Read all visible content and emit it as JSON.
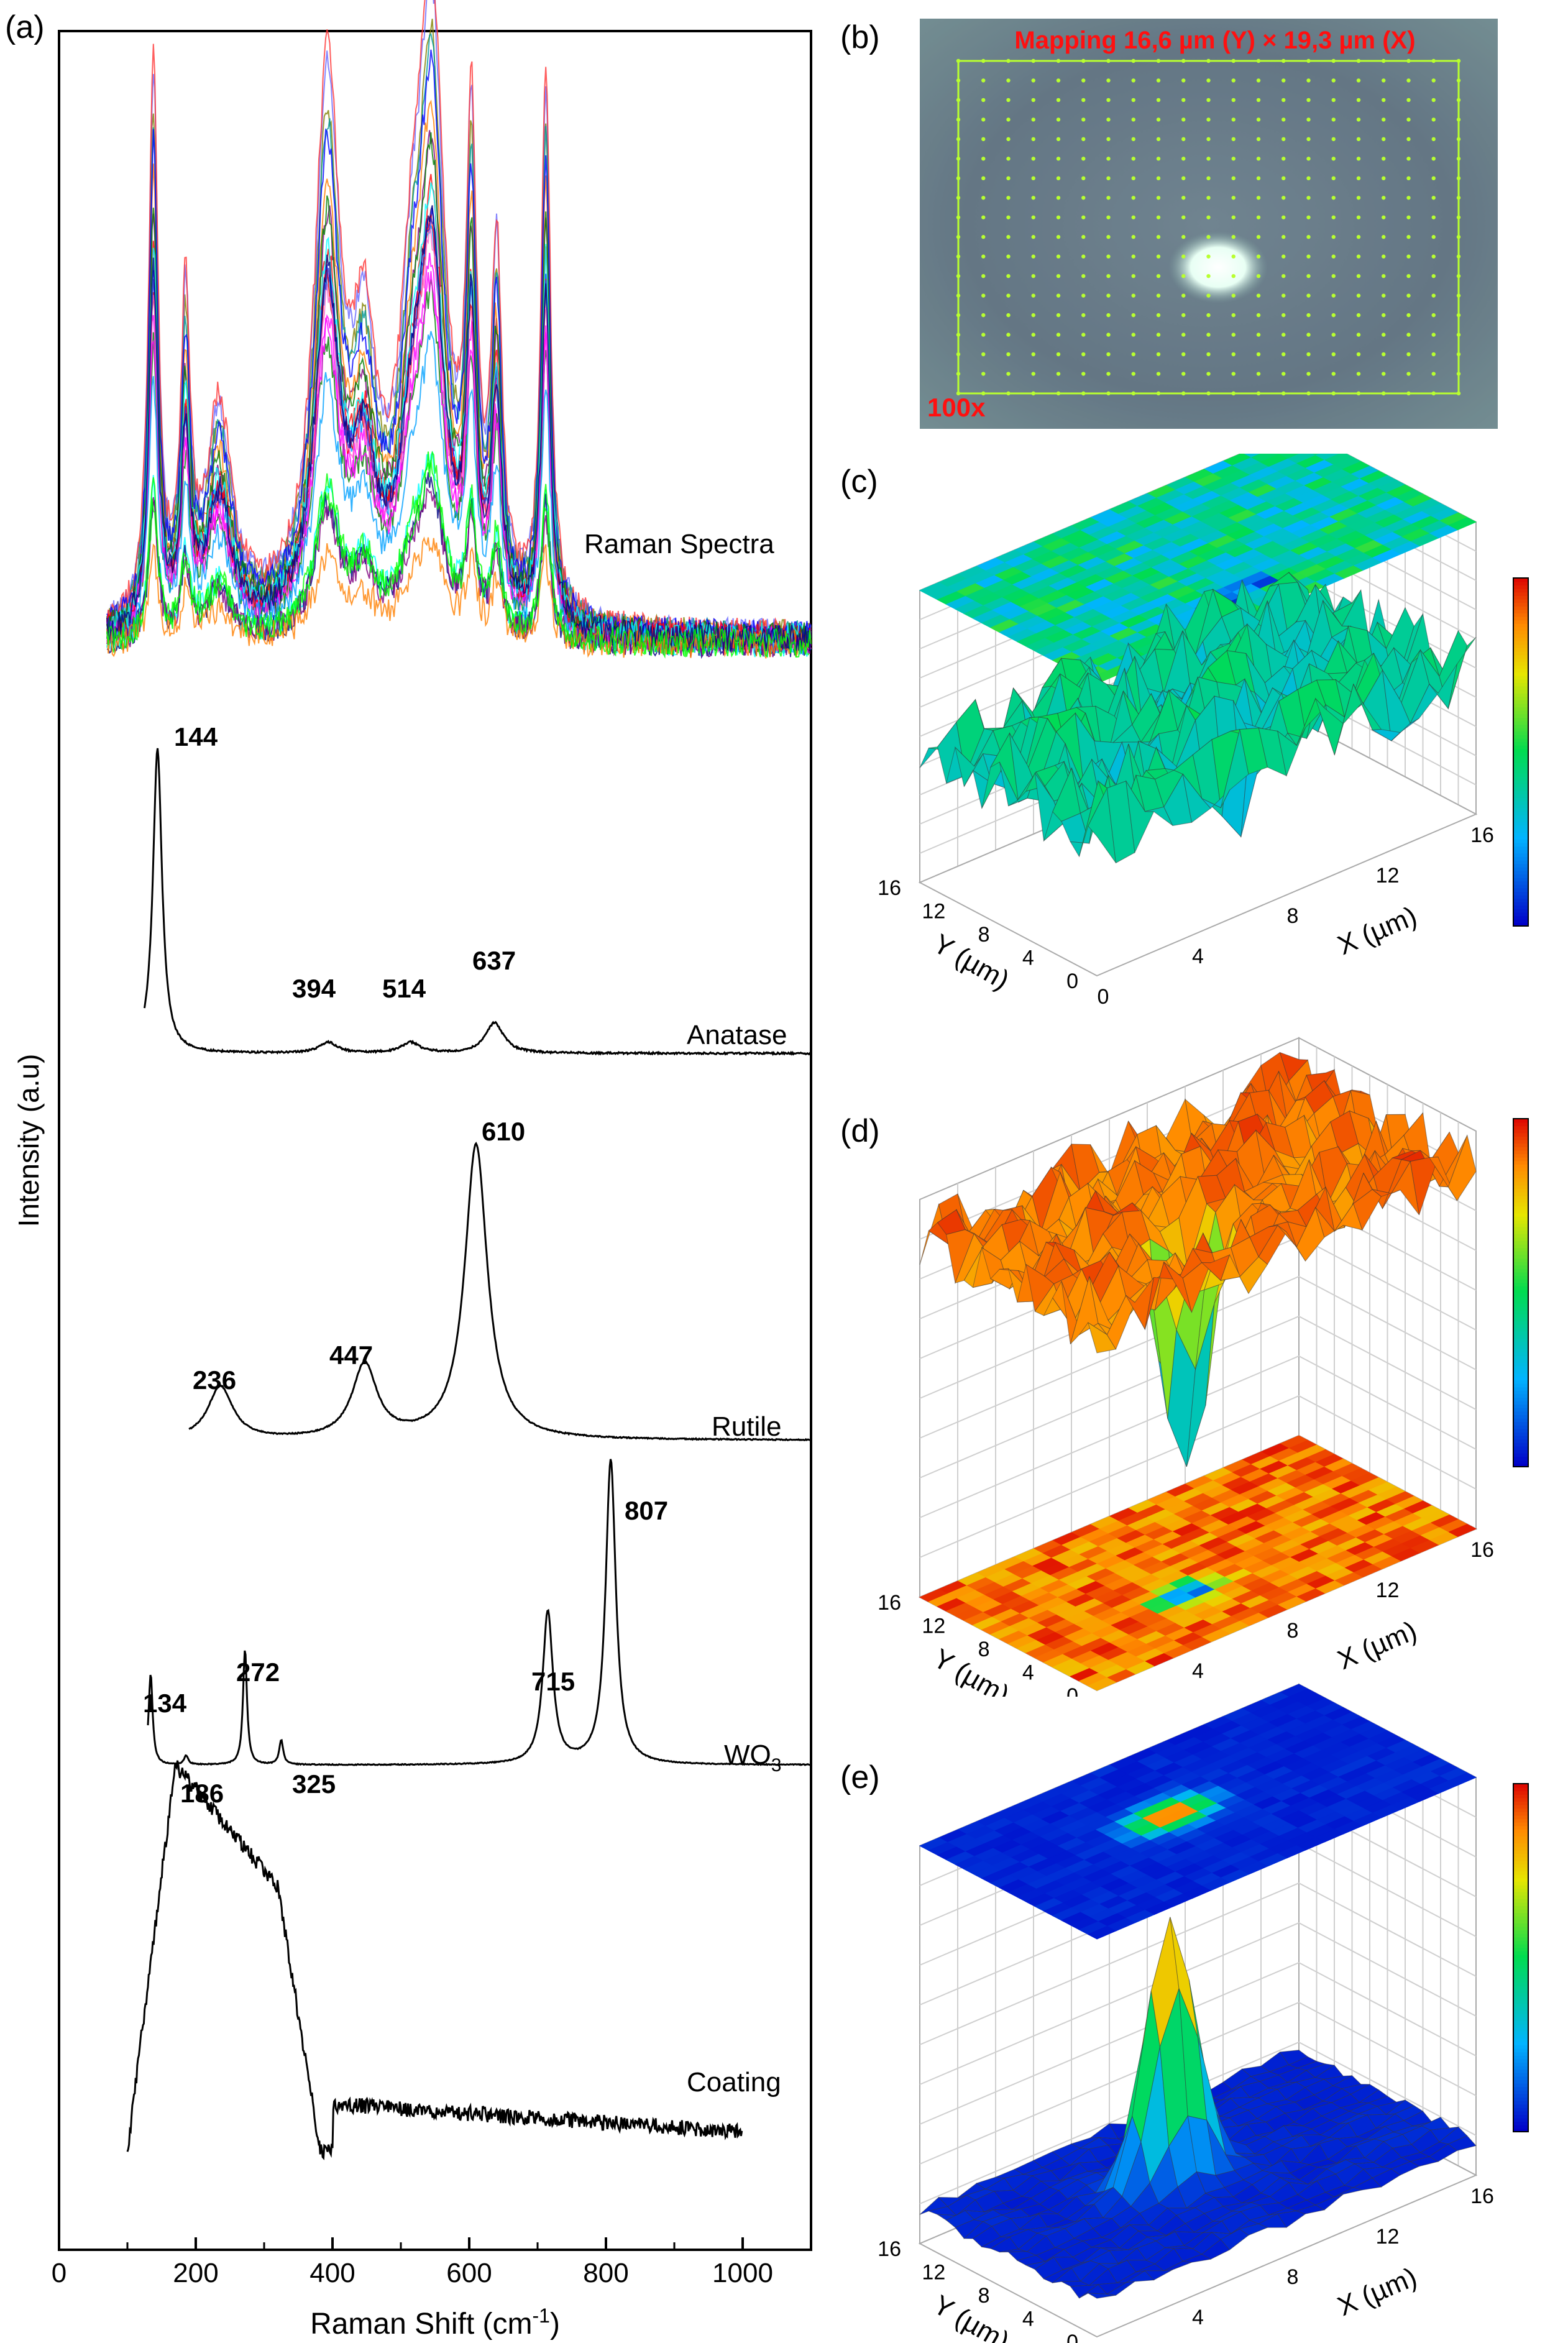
{
  "panels": {
    "a": "(a)",
    "b": "(b)",
    "c": "(c)",
    "d": "(d)",
    "e": "(e)"
  },
  "chart_data": [
    {
      "type": "line",
      "title": "",
      "xlabel": "Raman Shift (cm",
      "xlabel_sup": "-1",
      "xlabel_close": ")",
      "ylabel": "Intensity (a.u)",
      "xlim": [
        0,
        1100
      ],
      "xticks": [
        "0",
        "200",
        "400",
        "600",
        "800",
        "1000"
      ],
      "series": [
        {
          "name": "Raman Spectra",
          "label": "Raman Spectra",
          "x_range": [
            70,
            1100
          ],
          "peaks": [
            [
              138,
              1.0
            ],
            [
              185,
              0.55
            ],
            [
              234,
              0.38
            ],
            [
              392,
              0.95
            ],
            [
              446,
              0.42
            ],
            [
              516,
              0.4
            ],
            [
              545,
              1.0
            ],
            [
              603,
              0.8
            ],
            [
              640,
              0.62
            ],
            [
              712,
              0.98
            ]
          ]
        },
        {
          "name": "Anatase",
          "label": "Anatase",
          "x_range": [
            125,
            1100
          ],
          "peaks": [
            {
              "x": 144,
              "rel": 1.0,
              "label": "144"
            },
            {
              "x": 394,
              "rel": 0.035,
              "label": "394"
            },
            {
              "x": 514,
              "rel": 0.035,
              "label": "514"
            },
            {
              "x": 637,
              "rel": 0.1,
              "label": "637"
            }
          ]
        },
        {
          "name": "Rutile",
          "label": "Rutile",
          "x_range": [
            190,
            1100
          ],
          "peaks": [
            {
              "x": 236,
              "rel": 0.18,
              "label": "236"
            },
            {
              "x": 447,
              "rel": 0.25,
              "label": "447"
            },
            {
              "x": 610,
              "rel": 1.0,
              "label": "610"
            }
          ]
        },
        {
          "name": "WO3",
          "label_main": "WO",
          "label_sub": "3",
          "x_range": [
            130,
            1100
          ],
          "peaks": [
            {
              "x": 134,
              "rel": 0.3,
              "label": "134"
            },
            {
              "x": 186,
              "rel": 0.03,
              "label": "186"
            },
            {
              "x": 272,
              "rel": 0.38,
              "label": "272"
            },
            {
              "x": 325,
              "rel": 0.08,
              "label": "325"
            },
            {
              "x": 715,
              "rel": 0.5,
              "label": "715"
            },
            {
              "x": 807,
              "rel": 1.0,
              "label": "807"
            }
          ]
        },
        {
          "name": "Coating",
          "label": "Coating",
          "x_range": [
            100,
            1000
          ],
          "shape": "broad fluorescence background, max near 170 cm-1"
        }
      ]
    },
    {
      "type": "image",
      "panel": "b",
      "title": "Mapping 16,6 µm (Y) × 19,3 µm (X)",
      "magnification": "100x",
      "grid": {
        "rows": 18,
        "cols": 21
      }
    },
    {
      "type": "surface3d",
      "panel": "c",
      "xlabel": "X (µm)",
      "ylabel": "Y (µm)",
      "xticks": [
        "0",
        "4",
        "8",
        "12",
        "16"
      ],
      "yticks": [
        "0",
        "4",
        "8",
        "12",
        "16"
      ],
      "colormap": "blue-cyan-green-yellow-red",
      "description_tone": "mostly cyan-green with dips"
    },
    {
      "type": "surface3d",
      "panel": "d",
      "xlabel": "X (µm)",
      "ylabel": "Y (µm)",
      "xticks": [
        "0",
        "4",
        "8",
        "12",
        "16"
      ],
      "yticks": [
        "0",
        "4",
        "8",
        "12",
        "16"
      ],
      "colormap": "blue-cyan-green-yellow-red"
    },
    {
      "type": "surface3d",
      "panel": "e",
      "xlabel": "X (µm)",
      "ylabel": "Y (µm)",
      "xticks": [
        "0",
        "4",
        "8",
        "12",
        "16"
      ],
      "yticks": [
        "0",
        "4",
        "8",
        "12",
        "16"
      ],
      "colormap": "blue-cyan-green-yellow-red"
    }
  ],
  "colors": {
    "spectrum": "#000000",
    "mapping_title": "#ff1010",
    "grid_dots": "#b8ff30",
    "micro_bg": "#5f7480"
  }
}
